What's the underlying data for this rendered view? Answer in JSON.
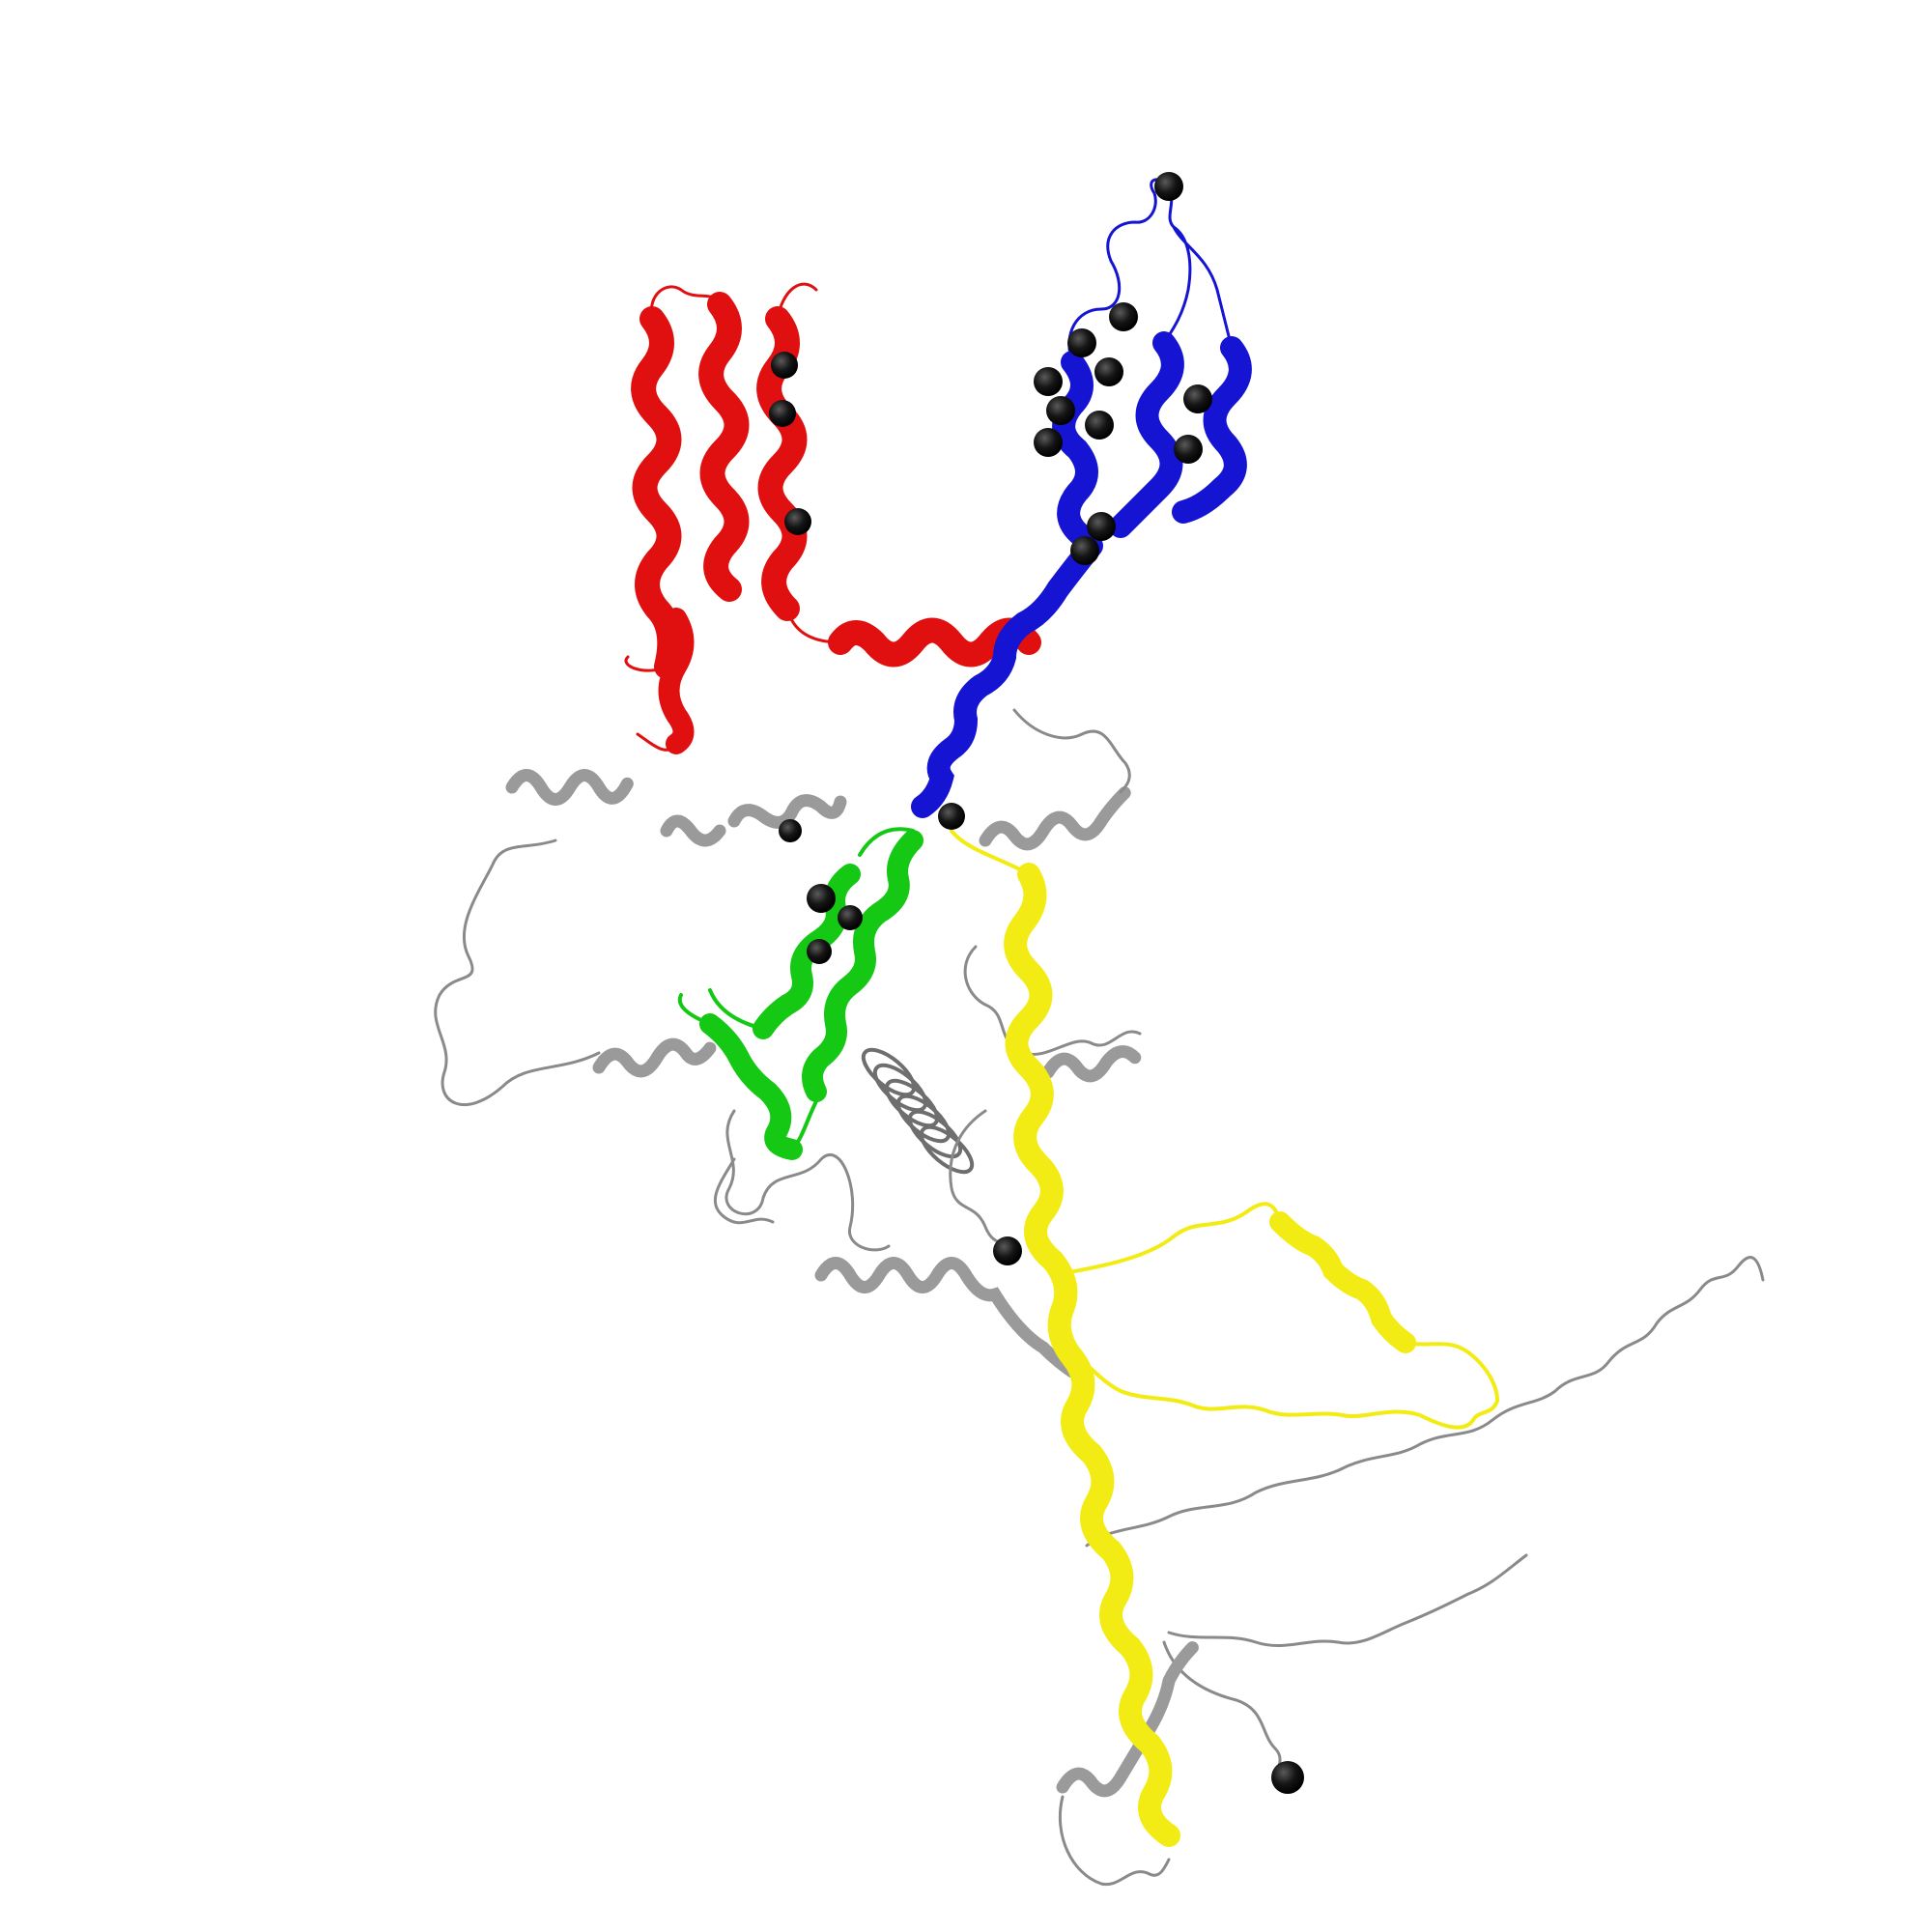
{
  "palette": {
    "background": "#ffffff",
    "red_domain": "#e11010",
    "blue_domain": "#1414d2",
    "green_domain": "#14c814",
    "yellow_domain": "#f2ec14",
    "grey_scaffold": "#8f8f8f",
    "marker_sphere": "#111111"
  },
  "scene": {
    "kind": "protein-structure-cartoon",
    "domains": [
      {
        "id": "red",
        "color_key": "red_domain",
        "shape": "helix-bundle"
      },
      {
        "id": "blue",
        "color_key": "blue_domain",
        "shape": "helix-bundle-with-long-helix"
      },
      {
        "id": "green",
        "color_key": "green_domain",
        "shape": "helix-hairpin"
      },
      {
        "id": "yellow",
        "color_key": "yellow_domain",
        "shape": "long-helix-with-loop"
      },
      {
        "id": "grey",
        "color_key": "grey_scaffold",
        "shape": "coils-and-helices"
      }
    ],
    "marker_count": 22
  }
}
